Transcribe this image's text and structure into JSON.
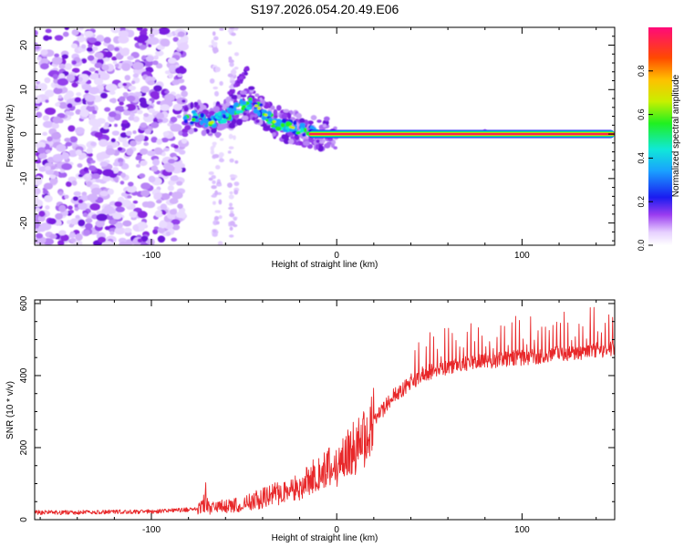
{
  "figure": {
    "title": "S197.2026.054.20.49.E06"
  },
  "chart_data": [
    {
      "type": "heatmap",
      "title": "S197.2026.054.20.49.E06",
      "xlabel": "Height of straight line (km)",
      "ylabel": "Frequency (Hz)",
      "xlim": [
        -163,
        150
      ],
      "ylim": [
        -25,
        24
      ],
      "xticks": [
        -100,
        0,
        100
      ],
      "xtick_labels": [
        "-100",
        "0",
        "100"
      ],
      "yticks": [
        -20,
        -10,
        0,
        10,
        20
      ],
      "ytick_labels": [
        "-20",
        "-10",
        "0",
        "10",
        "20"
      ],
      "colorbar": {
        "label": "Normalized spectral amplitude",
        "range": [
          0,
          1
        ],
        "ticks": [
          0.0,
          0.2,
          0.4,
          0.6,
          0.8
        ],
        "tick_labels": [
          "0.0",
          "0.2",
          "0.4",
          "0.6",
          "0.8"
        ]
      },
      "features": {
        "noise_region_x": [
          -163,
          -82
        ],
        "carrier_path": [
          {
            "x": -82,
            "f": 3
          },
          {
            "x": -75,
            "f": 4
          },
          {
            "x": -68,
            "f": 2.5
          },
          {
            "x": -60,
            "f": 4
          },
          {
            "x": -52,
            "f": 6
          },
          {
            "x": -45,
            "f": 7
          },
          {
            "x": -40,
            "f": 5
          },
          {
            "x": -35,
            "f": 3
          },
          {
            "x": -28,
            "f": 2
          },
          {
            "x": -20,
            "f": 1
          },
          {
            "x": -10,
            "f": 0
          },
          {
            "x": 0,
            "f": 0
          },
          {
            "x": 150,
            "f": 0
          }
        ],
        "saturated_band_x": [
          -15,
          150
        ],
        "saturated_band_f": 0
      }
    },
    {
      "type": "line",
      "xlabel": "Height of straight line (km)",
      "ylabel": "SNR (10 * v/v)",
      "xlim": [
        -163,
        150
      ],
      "ylim": [
        0,
        610
      ],
      "xticks": [
        -100,
        0,
        100
      ],
      "xtick_labels": [
        "-100",
        "0",
        "100"
      ],
      "yticks": [
        0,
        200,
        400,
        600
      ],
      "ytick_labels": [
        "0",
        "200",
        "400",
        "600"
      ],
      "color": "#e8282a",
      "series": [
        {
          "name": "SNR",
          "x": [
            -163,
            -140,
            -120,
            -100,
            -90,
            -80,
            -70,
            -60,
            -50,
            -40,
            -30,
            -20,
            -10,
            0,
            10,
            20,
            30,
            40,
            50,
            60,
            70,
            80,
            90,
            100,
            110,
            120,
            130,
            140,
            150
          ],
          "y": [
            20,
            20,
            22,
            22,
            25,
            28,
            35,
            35,
            45,
            60,
            75,
            95,
            130,
            150,
            200,
            270,
            340,
            380,
            410,
            425,
            435,
            440,
            445,
            450,
            455,
            460,
            465,
            470,
            475
          ]
        }
      ]
    }
  ]
}
